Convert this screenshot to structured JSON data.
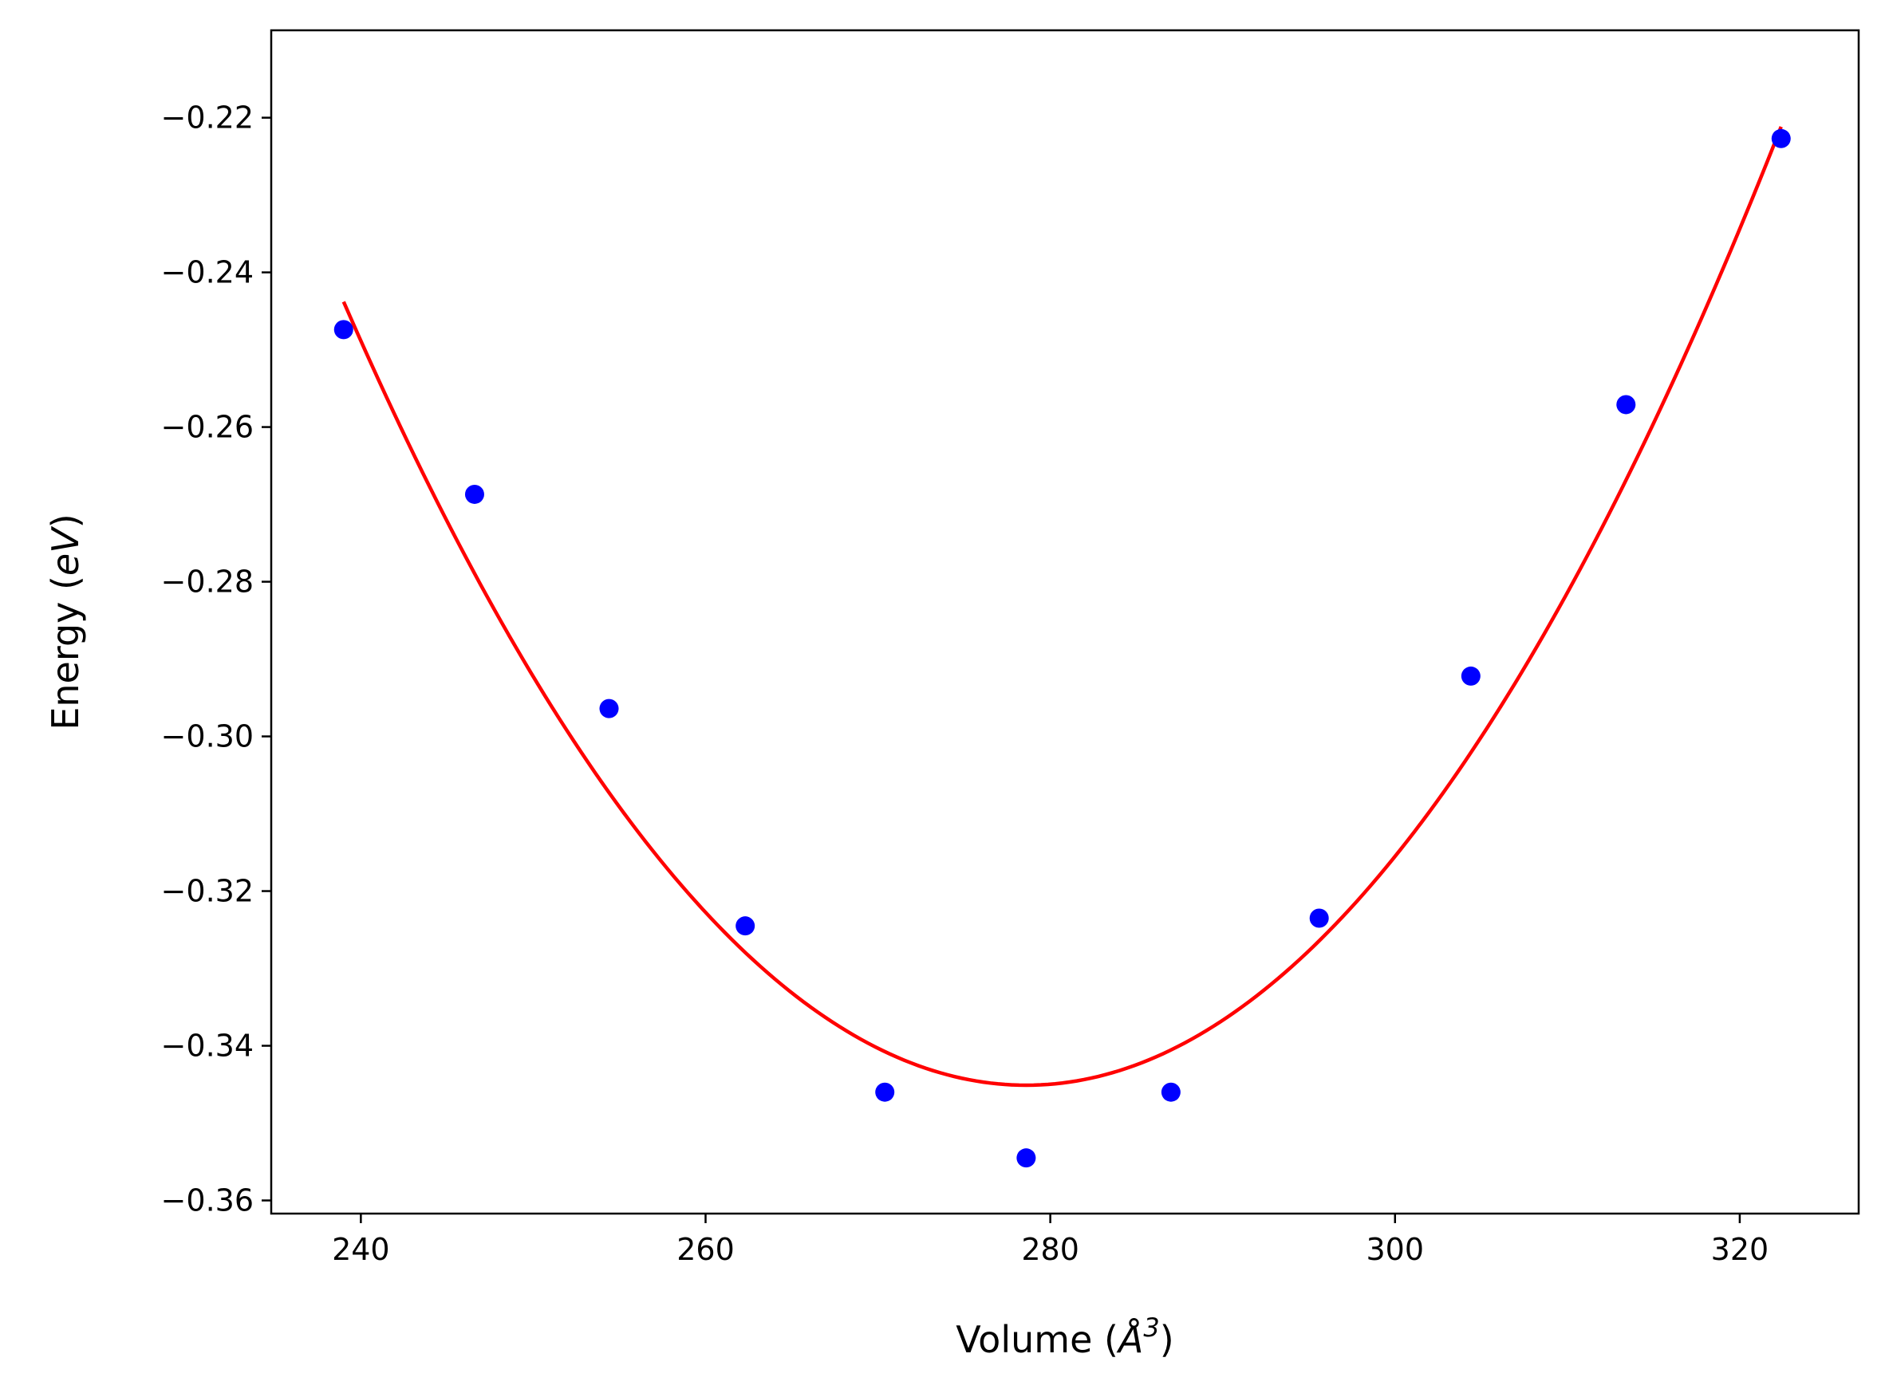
{
  "chart_data": {
    "type": "scatter",
    "title": "",
    "xlabel": {
      "prefix": "Volume (",
      "unit": "Å",
      "exponent": "3",
      "suffix": ")"
    },
    "ylabel": {
      "prefix": "Energy (",
      "unit": "eV",
      "suffix": ")"
    },
    "xlim": [
      234.8,
      326.9
    ],
    "ylim": [
      -0.3617,
      -0.2087
    ],
    "xticks": [
      240,
      260,
      280,
      300,
      320
    ],
    "xtick_labels": [
      "240",
      "260",
      "280",
      "300",
      "320"
    ],
    "yticks": [
      -0.22,
      -0.24,
      -0.26,
      -0.28,
      -0.3,
      -0.32,
      -0.34,
      -0.36
    ],
    "ytick_labels": [
      "−0.22",
      "−0.24",
      "−0.26",
      "−0.28",
      "−0.30",
      "−0.32",
      "−0.34",
      "−0.36"
    ],
    "series": [
      {
        "name": "data",
        "kind": "points",
        "color": "#0000ff",
        "x": [
          239.0,
          246.6,
          254.4,
          262.3,
          270.4,
          278.6,
          287.0,
          295.6,
          304.4,
          313.4,
          322.4
        ],
        "y": [
          -0.2474,
          -0.2687,
          -0.2964,
          -0.3245,
          -0.346,
          -0.3545,
          -0.346,
          -0.3235,
          -0.2922,
          -0.2571,
          -0.2227
        ]
      },
      {
        "name": "fit",
        "kind": "curve",
        "color": "#ff0000",
        "model": "quadratic",
        "x_range": [
          239.0,
          322.4
        ],
        "coefficients": {
          "x_min": 278.6,
          "y_min": -0.3451,
          "a": 6.46e-05
        }
      }
    ]
  }
}
